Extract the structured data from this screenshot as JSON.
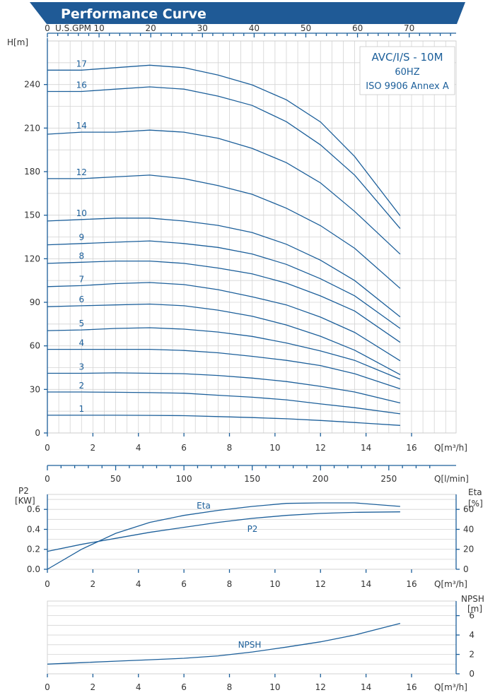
{
  "chart_data": [
    {
      "id": "head",
      "type": "line",
      "title": "Performance Curve",
      "info_box": [
        "AVC/I/S - 10M",
        "60HZ",
        "ISO 9906 Annex A"
      ],
      "ylabel": "H[m]",
      "xlabel": "Q[m³/h]",
      "top_axis_label": "U.S.GPM",
      "top_ticks": [
        "0",
        "10",
        "20",
        "30",
        "40",
        "50",
        "60",
        "70"
      ],
      "lpm_label": "Q[l/min]",
      "lpm_ticks": [
        "0",
        "50",
        "100",
        "150",
        "200",
        "250"
      ],
      "x_ticks": [
        "0",
        "2",
        "4",
        "6",
        "8",
        "10",
        "12",
        "14",
        "16"
      ],
      "y_ticks": [
        "0",
        "30",
        "60",
        "90",
        "120",
        "150",
        "180",
        "210",
        "240"
      ],
      "xlim": [
        0,
        16
      ],
      "ylim": [
        0,
        270
      ],
      "grid": true,
      "x": [
        0,
        1.5,
        3,
        4.5,
        6,
        7.5,
        9,
        10.5,
        12,
        13.5,
        15.5
      ],
      "stages": [
        {
          "name": "1",
          "per_stage": [
            12.2,
            12.2,
            12.2,
            12.1,
            11.9,
            11.3,
            10.6,
            9.8,
            8.6,
            7.2,
            5.2
          ]
        },
        {
          "name": "2",
          "per_stage": [
            14.1,
            14.1,
            14.0,
            13.9,
            13.7,
            13.0,
            12.3,
            11.4,
            10.0,
            8.7,
            6.6
          ]
        },
        {
          "name": "3",
          "per_stage": [
            13.7,
            13.7,
            13.8,
            13.7,
            13.6,
            13.2,
            12.6,
            11.8,
            10.7,
            9.4,
            6.9
          ]
        },
        {
          "name": "4",
          "per_stage": [
            14.4,
            14.4,
            14.4,
            14.4,
            14.2,
            13.8,
            13.2,
            12.5,
            11.6,
            10.2,
            7.6
          ]
        },
        {
          "name": "5",
          "per_stage": [
            14.1,
            14.2,
            14.4,
            14.5,
            14.3,
            13.9,
            13.3,
            12.4,
            11.3,
            10.0,
            7.4
          ]
        },
        {
          "name": "6",
          "per_stage": [
            14.5,
            14.6,
            14.7,
            14.8,
            14.6,
            14.1,
            13.4,
            12.4,
            11.1,
            9.5,
            6.7
          ]
        },
        {
          "name": "7",
          "per_stage": [
            14.4,
            14.5,
            14.7,
            14.8,
            14.6,
            14.1,
            13.4,
            12.6,
            11.4,
            9.9,
            7.1
          ]
        },
        {
          "name": "8",
          "per_stage": [
            14.6,
            14.7,
            14.8,
            14.8,
            14.6,
            14.2,
            13.7,
            12.9,
            11.8,
            10.5,
            7.8
          ]
        },
        {
          "name": "9",
          "per_stage": [
            14.4,
            14.5,
            14.6,
            14.7,
            14.5,
            14.2,
            13.7,
            12.9,
            11.8,
            10.5,
            8.0
          ]
        },
        {
          "name": "10",
          "per_stage": [
            14.6,
            14.7,
            14.8,
            14.8,
            14.6,
            14.3,
            13.8,
            13.0,
            11.9,
            10.5,
            8.0
          ]
        },
        {
          "name": "12",
          "per_stage": [
            14.6,
            14.6,
            14.7,
            14.8,
            14.6,
            14.2,
            13.7,
            12.9,
            11.9,
            10.6,
            8.3
          ]
        },
        {
          "name": "14",
          "per_stage": [
            14.7,
            14.8,
            14.8,
            14.9,
            14.8,
            14.5,
            14.0,
            13.3,
            12.3,
            10.9,
            8.8
          ]
        },
        {
          "name": "16",
          "per_stage": [
            14.7,
            14.7,
            14.8,
            14.9,
            14.8,
            14.5,
            14.1,
            13.4,
            12.4,
            11.1,
            8.8
          ]
        },
        {
          "name": "17",
          "per_stage": [
            14.7,
            14.7,
            14.8,
            14.9,
            14.8,
            14.5,
            14.1,
            13.5,
            12.6,
            11.2,
            8.8
          ]
        }
      ]
    },
    {
      "id": "power",
      "type": "line",
      "ylabel_left": [
        "P2",
        "[KW]"
      ],
      "ylabel_right": [
        "Eta",
        "[%]"
      ],
      "xlabel": "Q[m³/h]",
      "x_ticks": [
        "0",
        "2",
        "4",
        "6",
        "8",
        "10",
        "12",
        "14",
        "16"
      ],
      "y_left_ticks": [
        "0.0",
        "0.2",
        "0.4",
        "0.6"
      ],
      "y_right_ticks": [
        "0",
        "20",
        "40",
        "60"
      ],
      "xlim": [
        0,
        16
      ],
      "ylim_left": [
        0,
        0.75
      ],
      "ylim_right": [
        0,
        75
      ],
      "series": [
        {
          "name": "Eta",
          "axis": "right",
          "x": [
            0,
            1.5,
            3,
            4.5,
            6,
            7.5,
            9,
            10.5,
            12,
            13.5,
            15.5
          ],
          "values": [
            0,
            20,
            36,
            47,
            54,
            59,
            63,
            66,
            66.5,
            66.5,
            63
          ]
        },
        {
          "name": "P2",
          "axis": "left",
          "x": [
            0,
            1.5,
            3,
            4.5,
            6,
            7.5,
            9,
            10.5,
            12,
            13.5,
            15.5
          ],
          "values": [
            0.18,
            0.25,
            0.31,
            0.37,
            0.42,
            0.47,
            0.51,
            0.54,
            0.56,
            0.57,
            0.575
          ]
        }
      ]
    },
    {
      "id": "npsh",
      "type": "line",
      "ylabel_right": [
        "NPSH",
        "[m]"
      ],
      "xlabel": "Q[m³/h]",
      "x_ticks": [
        "0",
        "2",
        "4",
        "6",
        "8",
        "10",
        "12",
        "14",
        "16"
      ],
      "y_right_ticks": [
        "0",
        "2",
        "4",
        "6"
      ],
      "xlim": [
        0,
        16
      ],
      "ylim": [
        0,
        7.5
      ],
      "series": [
        {
          "name": "NPSH",
          "x": [
            0,
            1.5,
            3,
            4.5,
            6,
            7.5,
            9,
            10.5,
            12,
            13.5,
            15.5
          ],
          "values": [
            1.0,
            1.15,
            1.3,
            1.45,
            1.6,
            1.85,
            2.25,
            2.75,
            3.3,
            4.0,
            5.2
          ]
        }
      ]
    }
  ],
  "colors": {
    "accent": "#1c5f9a",
    "grid": "#d4d4d4",
    "text": "#333333",
    "banner": "#1f5a96"
  }
}
